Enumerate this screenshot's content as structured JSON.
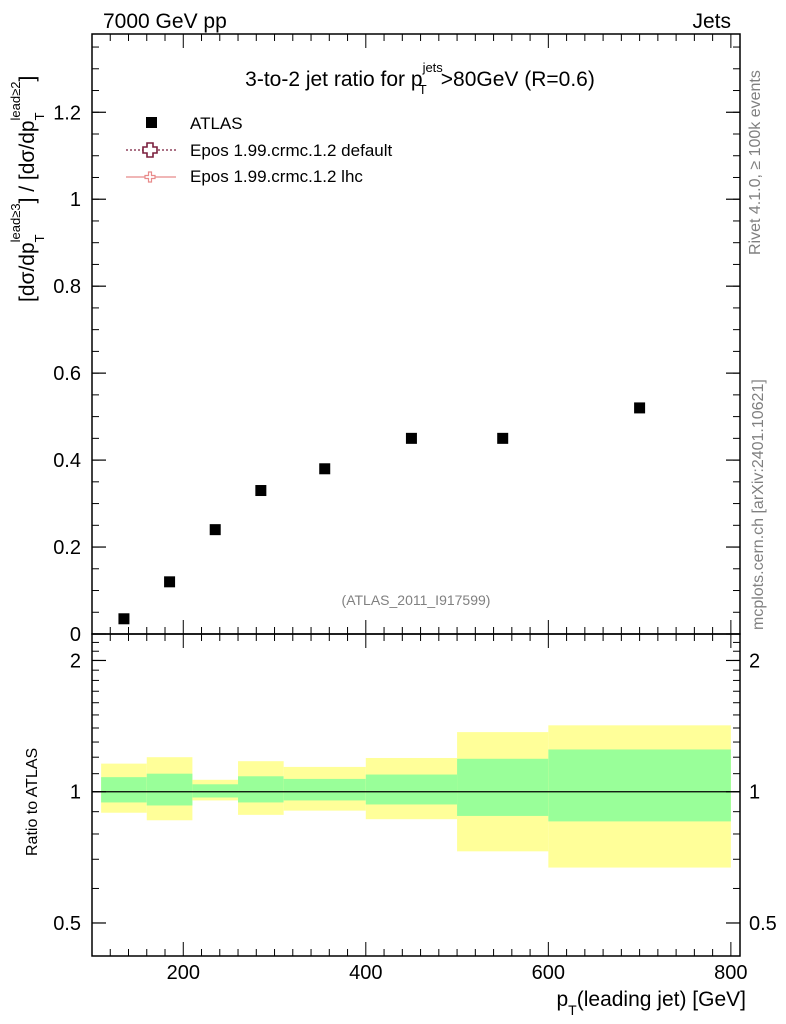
{
  "header": {
    "left": "7000 GeV pp",
    "right": "Jets"
  },
  "side_labels": {
    "rivet": "Rivet 4.1.0, ≥ 100k events",
    "mcplots": "mcplots.cern.ch [arXiv:2401.10621]"
  },
  "chart_data": [
    {
      "type": "scatter",
      "title_parts": {
        "a": "3-to-2 jet ratio for p",
        "sup": "jets",
        "sub": "T",
        "b": ">80GeV (R=0.6)"
      },
      "watermark": "(ATLAS_2011_I917599)",
      "ylabel_parts": {
        "open": "[dσ/dp",
        "sub1": "T",
        "sup1": "lead≥3",
        "mid": "] / [dσ/dp",
        "sub2": "T",
        "sup2": "lead≥2",
        "close": "]"
      },
      "xlim": [
        100,
        810
      ],
      "ylim": [
        0,
        1.38
      ],
      "y_ticks": [
        {
          "value": 0,
          "label": "0"
        },
        {
          "value": 0.2,
          "label": "0.2"
        },
        {
          "value": 0.4,
          "label": "0.4"
        },
        {
          "value": 0.6,
          "label": "0.6"
        },
        {
          "value": 0.8,
          "label": "0.8"
        },
        {
          "value": 1.0,
          "label": "1"
        },
        {
          "value": 1.2,
          "label": "1.2"
        }
      ],
      "series": [
        {
          "name": "ATLAS",
          "color": "#000000",
          "points": [
            {
              "x": 135,
              "y": 0.035
            },
            {
              "x": 185,
              "y": 0.12
            },
            {
              "x": 235,
              "y": 0.24
            },
            {
              "x": 285,
              "y": 0.33
            },
            {
              "x": 355,
              "y": 0.38
            },
            {
              "x": 450,
              "y": 0.45
            },
            {
              "x": 550,
              "y": 0.45
            },
            {
              "x": 700,
              "y": 0.52
            }
          ]
        }
      ],
      "legend": [
        {
          "label": "ATLAS",
          "marker": "square",
          "color": "#000000"
        },
        {
          "label": "Epos 1.99.crmc.1.2 default",
          "marker": "open-cross",
          "color": "#7a1f3d"
        },
        {
          "label": "Epos 1.99.crmc.1.2 lhc",
          "marker": "open-cross",
          "color": "#e88a8a"
        }
      ]
    },
    {
      "type": "band",
      "ylabel": "Ratio to ATLAS",
      "xlabel_parts": {
        "a": "p",
        "sub": "T",
        "b": "(leading jet) [GeV]"
      },
      "xlim": [
        100,
        810
      ],
      "ylim": [
        0.42,
        2.3
      ],
      "yscale": "log",
      "x_ticks": [
        {
          "value": 200,
          "label": "200"
        },
        {
          "value": 400,
          "label": "400"
        },
        {
          "value": 600,
          "label": "600"
        },
        {
          "value": 800,
          "label": "800"
        }
      ],
      "y_ticks": [
        {
          "value": 0.5,
          "label": "0.5"
        },
        {
          "value": 1,
          "label": "1"
        },
        {
          "value": 2,
          "label": "2"
        }
      ],
      "colors": {
        "outer": "#ffff99",
        "inner": "#99ff99",
        "line": "#000000"
      },
      "bins": [
        {
          "lo": 110,
          "hi": 160,
          "outer": [
            0.895,
            1.16
          ],
          "inner": [
            0.945,
            1.08
          ]
        },
        {
          "lo": 160,
          "hi": 210,
          "outer": [
            0.86,
            1.2
          ],
          "inner": [
            0.93,
            1.1
          ]
        },
        {
          "lo": 210,
          "hi": 260,
          "outer": [
            0.955,
            1.065
          ],
          "inner": [
            0.97,
            1.04
          ]
        },
        {
          "lo": 260,
          "hi": 310,
          "outer": [
            0.885,
            1.175
          ],
          "inner": [
            0.945,
            1.085
          ]
        },
        {
          "lo": 310,
          "hi": 400,
          "outer": [
            0.905,
            1.14
          ],
          "inner": [
            0.955,
            1.07
          ]
        },
        {
          "lo": 400,
          "hi": 500,
          "outer": [
            0.865,
            1.195
          ],
          "inner": [
            0.935,
            1.095
          ]
        },
        {
          "lo": 500,
          "hi": 600,
          "outer": [
            0.73,
            1.37
          ],
          "inner": [
            0.88,
            1.19
          ]
        },
        {
          "lo": 600,
          "hi": 800,
          "outer": [
            0.67,
            1.42
          ],
          "inner": [
            0.855,
            1.25
          ]
        }
      ]
    }
  ]
}
